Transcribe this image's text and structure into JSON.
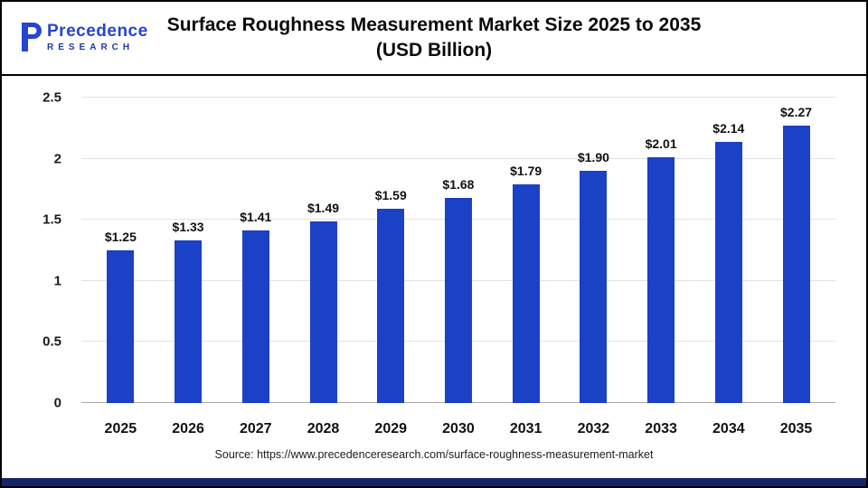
{
  "logo": {
    "line1": "Precedence",
    "line2": "RESEARCH",
    "color_primary": "#2545d2",
    "color_secondary": "#1c3aa2"
  },
  "header": {
    "title_line1": "Surface Roughness Measurement Market Size 2025 to 2035",
    "title_line2": "(USD Billion)"
  },
  "chart_data": {
    "type": "bar",
    "title": "Surface Roughness Measurement Market Size 2025 to 2035 (USD Billion)",
    "categories": [
      "2025",
      "2026",
      "2027",
      "2028",
      "2029",
      "2030",
      "2031",
      "2032",
      "2033",
      "2034",
      "2035"
    ],
    "values": [
      1.25,
      1.33,
      1.41,
      1.49,
      1.59,
      1.68,
      1.79,
      1.9,
      2.01,
      2.14,
      2.27
    ],
    "value_labels": [
      "$1.25",
      "$1.33",
      "$1.41",
      "$1.49",
      "$1.59",
      "$1.68",
      "$1.79",
      "$1.90",
      "$2.01",
      "$2.14",
      "$2.27"
    ],
    "xlabel": "",
    "ylabel": "",
    "ylim": [
      0,
      2.5
    ],
    "yticks": [
      0,
      0.5,
      1,
      1.5,
      2,
      2.5
    ],
    "ytick_labels": [
      "0",
      "0.5",
      "1",
      "1.5",
      "2",
      "2.5"
    ],
    "grid": true,
    "legend": "none",
    "bar_color": "#1b41c6"
  },
  "footer": {
    "source": "Source: https://www.precedenceresearch.com/surface-roughness-measurement-market",
    "accent_bar_color": "#15256b"
  }
}
